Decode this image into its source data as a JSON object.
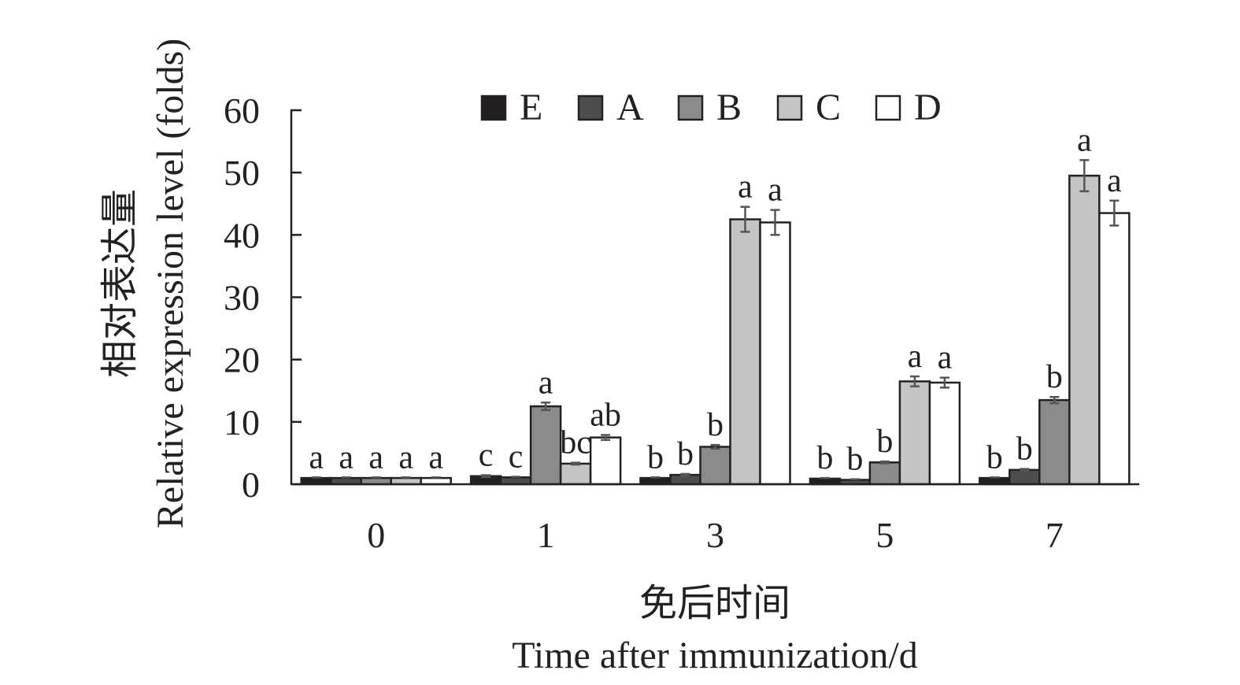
{
  "chart_data": {
    "type": "bar",
    "categories": [
      "0",
      "1",
      "3",
      "5",
      "7"
    ],
    "xlabel_lines": [
      "免后时间",
      "Time after immunization/d"
    ],
    "ylabel_lines": [
      "相对表达量",
      "Relative expression level (folds)"
    ],
    "ylim": [
      0,
      60
    ],
    "yticks": [
      0,
      10,
      20,
      30,
      40,
      50,
      60
    ],
    "grid": false,
    "legend_position": "top",
    "series": [
      {
        "name": "E",
        "color": "#231f20",
        "values": [
          1.0,
          1.3,
          1.0,
          0.9,
          1.0
        ],
        "errors": [
          0.1,
          0.15,
          0.1,
          0.1,
          0.1
        ],
        "letters": [
          "a",
          "c",
          "b",
          "b",
          "b"
        ]
      },
      {
        "name": "A",
        "color": "#4d4d4f",
        "values": [
          1.0,
          1.1,
          1.5,
          0.7,
          2.3
        ],
        "errors": [
          0.1,
          0.1,
          0.15,
          0.1,
          0.15
        ],
        "letters": [
          "a",
          "c",
          "b",
          "b",
          "b"
        ]
      },
      {
        "name": "B",
        "color": "#8b8b8c",
        "values": [
          1.0,
          12.5,
          6.0,
          3.5,
          13.5
        ],
        "errors": [
          0.1,
          0.6,
          0.3,
          0.15,
          0.5
        ],
        "letters": [
          "a",
          "a",
          "b",
          "b",
          "b"
        ]
      },
      {
        "name": "C",
        "color": "#c4c4c4",
        "values": [
          1.0,
          3.3,
          42.5,
          16.5,
          49.5
        ],
        "errors": [
          0.1,
          0.15,
          2.0,
          0.8,
          2.5
        ],
        "letters": [
          "a",
          "bc",
          "a",
          "a",
          "a"
        ]
      },
      {
        "name": "D",
        "color": "#ffffff",
        "values": [
          1.0,
          7.5,
          42.0,
          16.3,
          43.5
        ],
        "errors": [
          0.1,
          0.4,
          2.0,
          0.8,
          2.0
        ],
        "letters": [
          "a",
          "ab",
          "a",
          "a",
          "a"
        ]
      }
    ]
  }
}
